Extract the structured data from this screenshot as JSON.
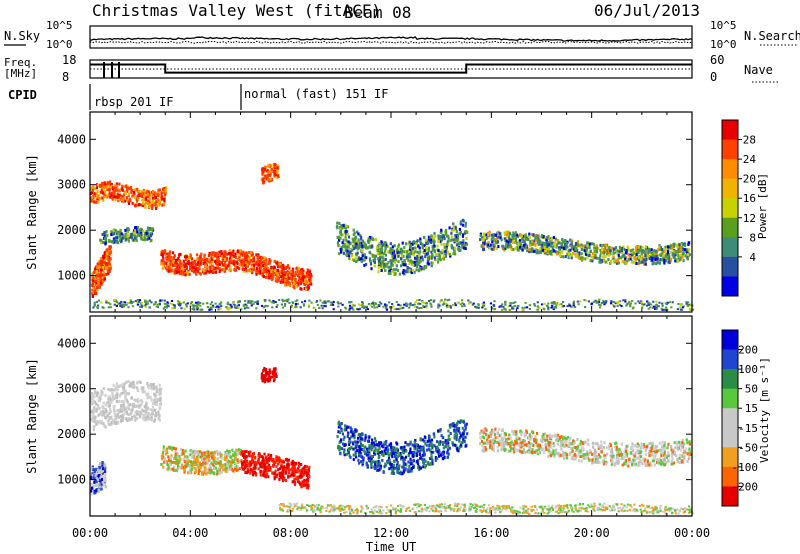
{
  "header": {
    "title": "Christmas Valley West (fitACF)",
    "beam": "Beam 08",
    "date": "06/Jul/2013"
  },
  "chart_data": [
    {
      "type": "line",
      "panel": "noise",
      "left_label": "N.Sky",
      "right_label": "N.Search",
      "left_ticks": [
        "10^5",
        "10^0"
      ],
      "right_ticks": [
        "10^5",
        "10^0"
      ]
    },
    {
      "type": "line",
      "panel": "frequency",
      "left_label_lines": [
        "Freq.",
        "[MHz]"
      ],
      "right_label": "Nave",
      "left_ticks": [
        "18",
        "8"
      ],
      "right_ticks": [
        "60",
        "0"
      ],
      "freq_steps": [
        {
          "t": 0,
          "mhz": 15.5
        },
        {
          "t": 3.0,
          "mhz": 11.0
        },
        {
          "t": 15.0,
          "mhz": 15.5
        },
        {
          "t": 24,
          "mhz": 15.5
        }
      ]
    },
    {
      "type": "table",
      "panel": "cpid",
      "label": "CPID",
      "modes": [
        "rbsp 201 IF",
        "normal (fast) 151 IF"
      ]
    },
    {
      "type": "heatmap",
      "panel": "power",
      "ylabel": "Slant Range [km]",
      "y_ticks": [
        1000,
        2000,
        3000,
        4000
      ],
      "ylim": [
        200,
        4600
      ],
      "xlim": [
        0,
        24
      ],
      "colorbar_label": "Power [dB]",
      "colorbar_ticks": [
        "28",
        "24",
        "20",
        "16",
        "12",
        "8",
        "4"
      ],
      "colors": [
        "#e60000",
        "#ff4000",
        "#ff8c00",
        "#f0b400",
        "#c8d200",
        "#5aa01e",
        "#3c8c78",
        "#2850a0",
        "#0000e6"
      ]
    },
    {
      "type": "heatmap",
      "panel": "velocity",
      "ylabel": "Slant Range [km]",
      "y_ticks": [
        1000,
        2000,
        3000,
        4000
      ],
      "ylim": [
        200,
        4600
      ],
      "xlim": [
        0,
        24
      ],
      "xlabel": "Time UT",
      "x_ticks": [
        "00:00",
        "04:00",
        "08:00",
        "12:00",
        "16:00",
        "20:00",
        "00:00"
      ],
      "colorbar_label": "Velocity [m s⁻¹]",
      "colorbar_ticks": [
        "200",
        "100",
        "50",
        "15",
        "-15",
        "-50",
        "-100",
        "-200"
      ],
      "colors": [
        "#0000dc",
        "#1e46d2",
        "#2a8c46",
        "#5ac83c",
        "#c8c8c8",
        "#c8c8c8",
        "#f0a01e",
        "#ff6400",
        "#e60000"
      ]
    }
  ]
}
